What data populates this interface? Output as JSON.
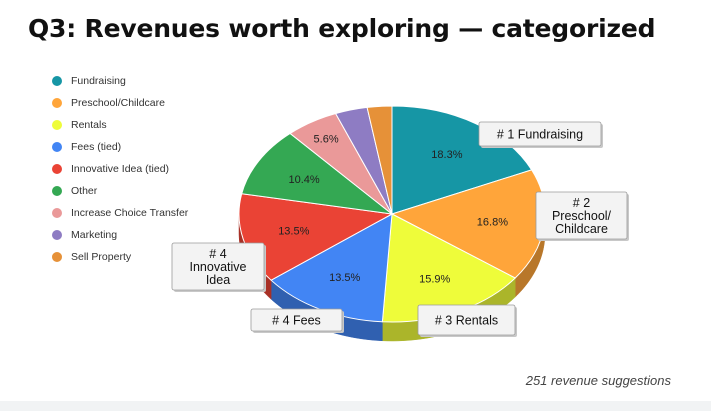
{
  "title": "Q3: Revenues worth exploring — categorized",
  "footer": "251 revenue suggestions",
  "chart_data": {
    "type": "pie",
    "style": "3d",
    "start": "12 o'clock, clockwise",
    "legend_position": "left",
    "slices": [
      {
        "name": "Fundraising",
        "value": 18.3,
        "label": "18.3%",
        "color": "#1696a5"
      },
      {
        "name": "Preschool/Childcare",
        "value": 16.8,
        "label": "16.8%",
        "color": "#ffa53a"
      },
      {
        "name": "Rentals",
        "value": 15.9,
        "label": "15.9%",
        "color": "#eefc3a"
      },
      {
        "name": "Fees (tied)",
        "value": 13.5,
        "label": "13.5%",
        "color": "#4285f4"
      },
      {
        "name": "Innovative Idea (tied)",
        "value": 13.5,
        "label": "13.5%",
        "color": "#ea4335"
      },
      {
        "name": "Other",
        "value": 10.4,
        "label": "10.4%",
        "color": "#34a853"
      },
      {
        "name": "Increase Choice Transfer",
        "value": 5.6,
        "label": "5.6%",
        "color": "#ea9999"
      },
      {
        "name": "Marketing",
        "value": 3.4,
        "label": "",
        "color": "#8e7cc3"
      },
      {
        "name": "Sell Property",
        "value": 2.6,
        "label": "",
        "color": "#e69138"
      }
    ],
    "callouts": [
      {
        "slice": 0,
        "lines": [
          "# 1  Fundraising"
        ]
      },
      {
        "slice": 1,
        "lines": [
          "# 2",
          "Preschool/",
          "Childcare"
        ]
      },
      {
        "slice": 2,
        "lines": [
          "# 3  Rentals"
        ]
      },
      {
        "slice": 3,
        "lines": [
          "# 4 Fees"
        ]
      },
      {
        "slice": 4,
        "lines": [
          "# 4",
          "Innovative",
          "Idea"
        ]
      }
    ]
  }
}
